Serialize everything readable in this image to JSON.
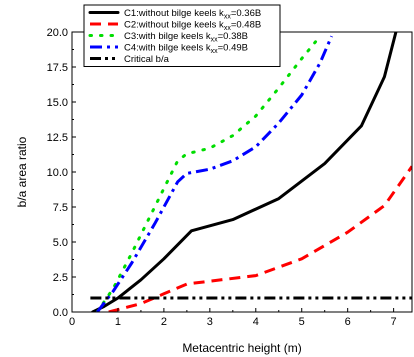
{
  "chart_data": {
    "type": "line",
    "xlabel": "Metacentric height (m)",
    "ylabel": "b/a area ratio",
    "xlim": [
      0,
      7.4
    ],
    "ylim": [
      0,
      20
    ],
    "xticks": [
      "0",
      "1",
      "2",
      "3",
      "4",
      "5",
      "6",
      "7"
    ],
    "yticks": [
      "0.0",
      "2.5",
      "5.0",
      "7.5",
      "10.0",
      "12.5",
      "15.0",
      "17.5",
      "20.0"
    ],
    "legend_position": "top-left",
    "grid": false,
    "series": [
      {
        "name_prefix": "C1:without bilge keels k",
        "name_sub": "xx",
        "name_suffix": "=0.36B",
        "color": "#000000",
        "style": "solid",
        "x": [
          0.45,
          0.7,
          1.0,
          1.5,
          2.0,
          2.6,
          3.5,
          4.5,
          5.5,
          6.3,
          6.8,
          7.05
        ],
        "y": [
          0.0,
          0.4,
          1.0,
          2.3,
          3.8,
          5.8,
          6.6,
          8.1,
          10.6,
          13.3,
          16.8,
          20.0
        ]
      },
      {
        "name_prefix": "C2:without bilge keels k",
        "name_sub": "xx",
        "name_suffix": "=0.48B",
        "color": "#ff0000",
        "style": "dashed",
        "x": [
          0.8,
          1.5,
          2.0,
          2.5,
          3.0,
          4.0,
          5.0,
          6.0,
          6.8,
          7.4
        ],
        "y": [
          0.0,
          0.6,
          1.3,
          2.0,
          2.2,
          2.6,
          3.8,
          5.7,
          7.6,
          10.4
        ]
      },
      {
        "name_prefix": "C3:with bilge keels k",
        "name_sub": "xx",
        "name_suffix": "=0.38B",
        "color": "#00dd00",
        "style": "dotted",
        "x": [
          0.55,
          0.9,
          1.3,
          1.8,
          2.3,
          2.5,
          3.0,
          3.5,
          4.0,
          4.5,
          5.0,
          5.3
        ],
        "y": [
          0.0,
          1.7,
          4.2,
          7.5,
          10.8,
          11.3,
          11.7,
          12.6,
          14.0,
          16.0,
          18.1,
          19.3
        ]
      },
      {
        "name_prefix": "C4:with bilge keels k",
        "name_sub": "xx",
        "name_suffix": "=0.49B",
        "color": "#0000ff",
        "style": "dash-dot",
        "x": [
          0.55,
          0.9,
          1.3,
          1.8,
          2.3,
          2.5,
          3.0,
          3.5,
          4.0,
          4.5,
          5.0,
          5.4,
          5.65
        ],
        "y": [
          0.0,
          1.5,
          3.5,
          6.3,
          9.3,
          9.9,
          10.2,
          10.8,
          11.8,
          13.5,
          15.5,
          17.8,
          19.7
        ]
      },
      {
        "name_prefix": "Critical b/a",
        "name_sub": "",
        "name_suffix": "",
        "color": "#000000",
        "style": "dash-dot-dot",
        "x": [
          0.4,
          7.4
        ],
        "y": [
          1.0,
          1.0
        ]
      }
    ]
  }
}
